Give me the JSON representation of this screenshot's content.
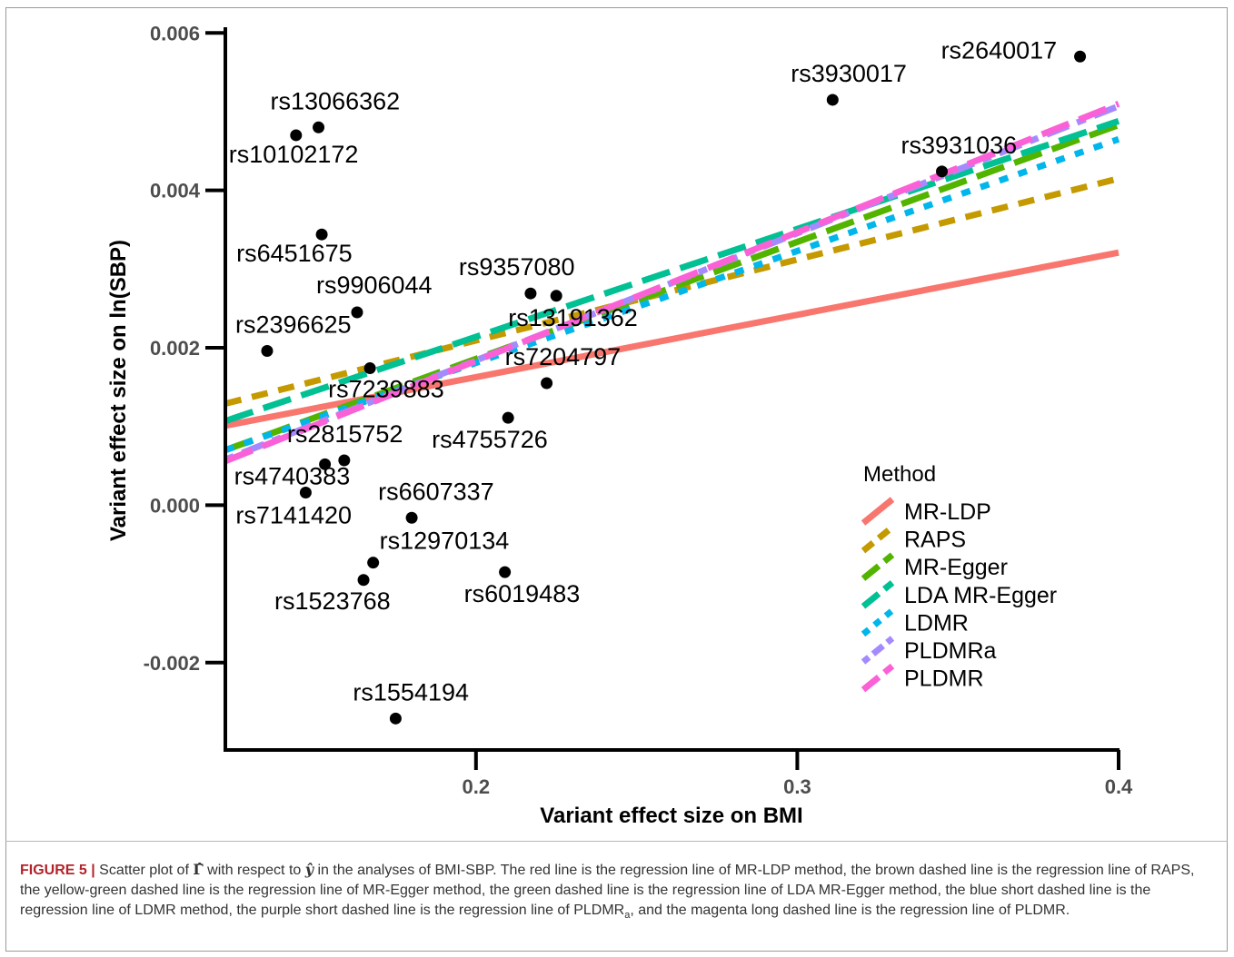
{
  "chart_data": {
    "type": "scatter",
    "xlabel": "Variant effect size on BMI",
    "ylabel": "Variant effect size on ln(SBP)",
    "xlim": [
      0.122,
      0.4
    ],
    "ylim": [
      -0.00311,
      0.00613
    ],
    "x_ticks": [
      {
        "value": 0.2,
        "label": "0.2"
      },
      {
        "value": 0.3,
        "label": "0.3"
      },
      {
        "value": 0.4,
        "label": "0.4"
      }
    ],
    "y_ticks": [
      {
        "value": -0.002,
        "label": "-0.002"
      },
      {
        "value": 0.0,
        "label": "0.000"
      },
      {
        "value": 0.002,
        "label": "0.002"
      },
      {
        "value": 0.004,
        "label": "0.004"
      },
      {
        "value": 0.006,
        "label": "0.006"
      }
    ],
    "grid": false,
    "legend": {
      "title": "Method",
      "placement": "right, inside plot"
    },
    "points": [
      {
        "label": "rs13066362",
        "x": 0.151,
        "y": 0.0048
      },
      {
        "label": "rs10102172",
        "x": 0.144,
        "y": 0.0047
      },
      {
        "label": "rs6451675",
        "x": 0.152,
        "y": 0.00344
      },
      {
        "label": "rs9906044",
        "x": 0.163,
        "y": 0.00245
      },
      {
        "label": "rs2396625",
        "x": 0.135,
        "y": 0.00196
      },
      {
        "label": "rs7239883",
        "x": 0.167,
        "y": 0.00174
      },
      {
        "label": "rs2815752",
        "x": 0.159,
        "y": 0.00057
      },
      {
        "label": "rs4740383",
        "x": 0.153,
        "y": 0.00052
      },
      {
        "label": "rs7141420",
        "x": 0.147,
        "y": 0.00016
      },
      {
        "label": "rs6607337",
        "x": 0.18,
        "y": -0.00016
      },
      {
        "label": "rs12970134",
        "x": 0.168,
        "y": -0.00073
      },
      {
        "label": "rs1523768",
        "x": 0.165,
        "y": -0.00095
      },
      {
        "label": "rs6019483",
        "x": 0.209,
        "y": -0.00085
      },
      {
        "label": "rs1554194",
        "x": 0.175,
        "y": -0.00271
      },
      {
        "label": "rs9357080",
        "x": 0.217,
        "y": 0.00269
      },
      {
        "label": "rs13191362",
        "x": 0.225,
        "y": 0.00266
      },
      {
        "label": "rs7204797",
        "x": 0.222,
        "y": 0.00155
      },
      {
        "label": "rs4755726",
        "x": 0.21,
        "y": 0.00111
      },
      {
        "label": "rs3930017",
        "x": 0.311,
        "y": 0.00515
      },
      {
        "label": "rs2640017",
        "x": 0.388,
        "y": 0.0057
      },
      {
        "label": "rs3931036",
        "x": 0.345,
        "y": 0.00424
      }
    ],
    "series": [
      {
        "name": "MR-LDP",
        "color": "#F8766D",
        "dash": "solid",
        "x": [
          0.122,
          0.4
        ],
        "y": [
          0.00101,
          0.00321
        ]
      },
      {
        "name": "RAPS",
        "color": "#C49A00",
        "dash": "dashed",
        "x": [
          0.122,
          0.4
        ],
        "y": [
          0.00129,
          0.00415
        ]
      },
      {
        "name": "MR-Egger",
        "color": "#53B400",
        "dash": "long-dashed",
        "x": [
          0.122,
          0.4
        ],
        "y": [
          0.0007,
          0.00483
        ]
      },
      {
        "name": "LDA MR-Egger",
        "color": "#00C094",
        "dash": "long-dashed",
        "x": [
          0.122,
          0.4
        ],
        "y": [
          0.00107,
          0.00488
        ]
      },
      {
        "name": "LDMR",
        "color": "#00B6EB",
        "dash": "dotted",
        "x": [
          0.122,
          0.4
        ],
        "y": [
          0.0007,
          0.00465
        ]
      },
      {
        "name": "PLDMRa",
        "color": "#A58AFF",
        "dash": "dot-dash",
        "x": [
          0.122,
          0.4
        ],
        "y": [
          0.00058,
          0.00507
        ]
      },
      {
        "name": "PLDMR",
        "color": "#FB61D7",
        "dash": "long-dashed",
        "x": [
          0.122,
          0.4
        ],
        "y": [
          0.00056,
          0.0051
        ]
      }
    ]
  },
  "caption": {
    "figure_label": "FIGURE 5 |",
    "text_1": " Scatter plot of ",
    "symbol_gamma": "Γ̂",
    "text_2": " with respect to ",
    "symbol_y": "ŷ",
    "text_3": " in the analyses of BMI-SBP. The red line is the regression line of MR-LDP method, the brown dashed line is the regression line of RAPS, the yellow-green dashed line is the regression line of MR-Egger method, the green dashed line is the regression line of LDA MR-Egger method, the blue short dashed line is the regression line of LDMR method, the purple short dashed line is the regression line of PLDMR",
    "subscript": "a",
    "text_4": ", and the magenta long dashed line is the regression line of PLDMR."
  }
}
